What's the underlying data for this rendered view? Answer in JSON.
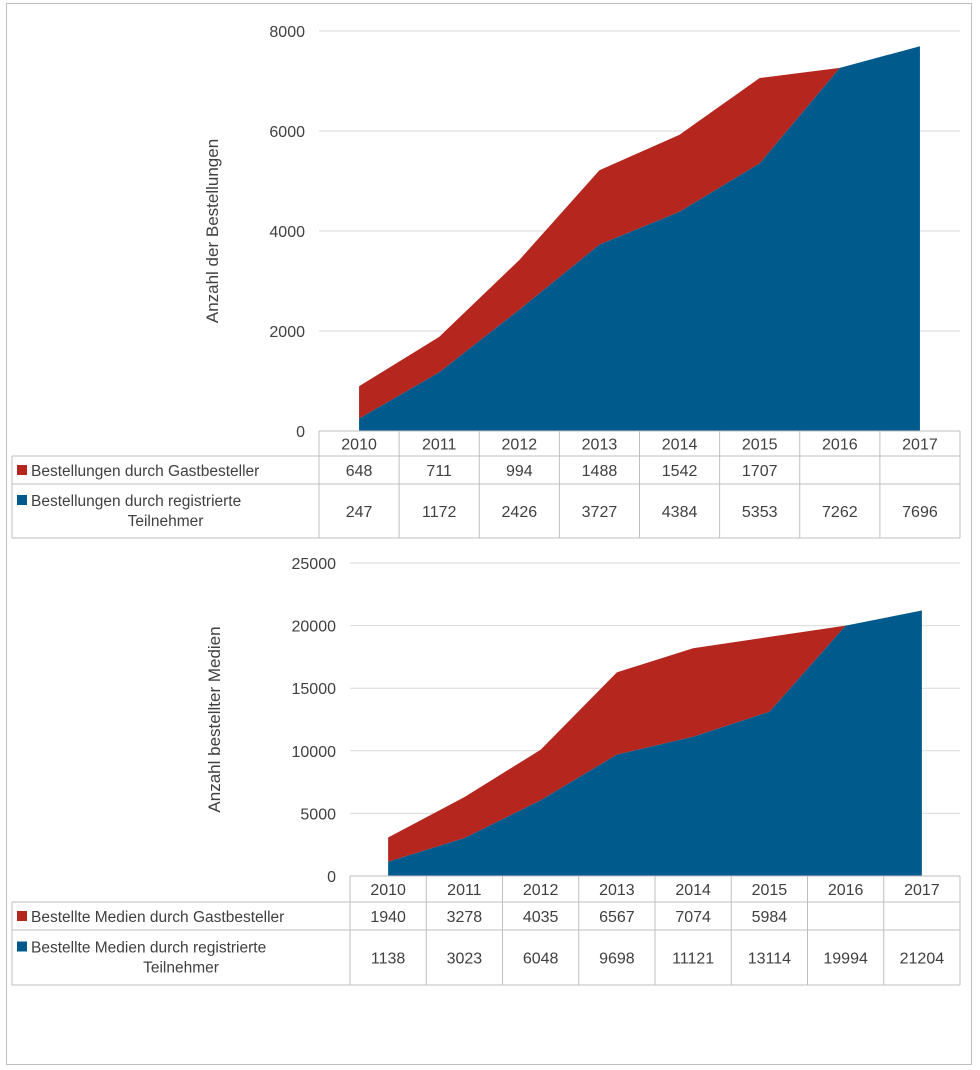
{
  "colors": {
    "guest": "#b5261e",
    "registered": "#005a8c",
    "grid": "#d9d9d9",
    "text": "#404040"
  },
  "chart_data": [
    {
      "type": "area",
      "stacked": true,
      "ylabel": "Anzahl der Bestellungen",
      "ylim": [
        0,
        8000
      ],
      "yticks": [
        "0",
        "2000",
        "4000",
        "6000",
        "8000"
      ],
      "categories": [
        "2010",
        "2011",
        "2012",
        "2013",
        "2014",
        "2015",
        "2016",
        "2017"
      ],
      "grid": true,
      "legend": "data-table",
      "series": [
        {
          "name": "Bestellungen durch Gastbesteller",
          "color": "guest",
          "values": [
            648,
            711,
            994,
            1488,
            1542,
            1707,
            null,
            null
          ],
          "labels": [
            "648",
            "711",
            "994",
            "1488",
            "1542",
            "1707",
            "",
            ""
          ]
        },
        {
          "name_lines": [
            "Bestellungen durch registrierte",
            "Teilnehmer"
          ],
          "color": "registered",
          "values": [
            247,
            1172,
            2426,
            3727,
            4384,
            5353,
            7262,
            7696
          ],
          "labels": [
            "247",
            "1172",
            "2426",
            "3727",
            "4384",
            "5353",
            "7262",
            "7696"
          ]
        }
      ]
    },
    {
      "type": "area",
      "stacked": true,
      "ylabel": "Anzahl bestellter Medien",
      "ylim": [
        0,
        25000
      ],
      "yticks": [
        "0",
        "5000",
        "10000",
        "15000",
        "20000",
        "25000"
      ],
      "categories": [
        "2010",
        "2011",
        "2012",
        "2013",
        "2014",
        "2015",
        "2016",
        "2017"
      ],
      "grid": true,
      "legend": "data-table",
      "series": [
        {
          "name": "Bestellte Medien durch Gastbesteller",
          "color": "guest",
          "values": [
            1940,
            3278,
            4035,
            6567,
            7074,
            5984,
            null,
            null
          ],
          "labels": [
            "1940",
            "3278",
            "4035",
            "6567",
            "7074",
            "5984",
            "",
            ""
          ]
        },
        {
          "name_lines": [
            "Bestellte Medien durch registrierte",
            "Teilnehmer"
          ],
          "color": "registered",
          "values": [
            1138,
            3023,
            6048,
            9698,
            11121,
            13114,
            19994,
            21204
          ],
          "labels": [
            "1138",
            "3023",
            "6048",
            "9698",
            "11121",
            "13114",
            "19994",
            "21204"
          ]
        }
      ]
    }
  ]
}
